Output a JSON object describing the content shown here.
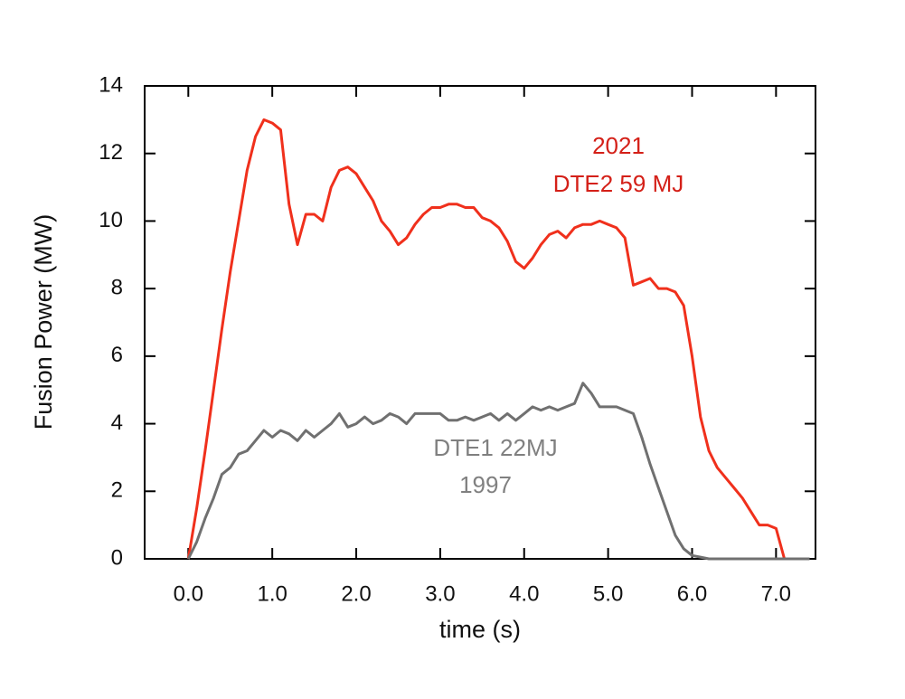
{
  "chart_data": {
    "type": "line",
    "xlabel": "time (s)",
    "ylabel": "Fusion Power (MW)",
    "x": [
      0.0,
      0.1,
      0.2,
      0.3,
      0.4,
      0.5,
      0.6,
      0.7,
      0.8,
      0.9,
      1.0,
      1.1,
      1.2,
      1.3,
      1.4,
      1.5,
      1.6,
      1.7,
      1.8,
      1.9,
      2.0,
      2.1,
      2.2,
      2.3,
      2.4,
      2.5,
      2.6,
      2.7,
      2.8,
      2.9,
      3.0,
      3.1,
      3.2,
      3.3,
      3.4,
      3.5,
      3.6,
      3.7,
      3.8,
      3.9,
      4.0,
      4.1,
      4.2,
      4.3,
      4.4,
      4.5,
      4.6,
      4.7,
      4.8,
      4.9,
      5.0,
      5.1,
      5.2,
      5.3,
      5.4,
      5.5,
      5.6,
      5.7,
      5.8,
      5.9,
      6.0,
      6.1,
      6.2,
      6.3,
      6.4,
      6.5,
      6.6,
      6.7,
      6.8,
      6.9,
      7.0,
      7.1,
      7.2,
      7.3,
      7.4
    ],
    "series": [
      {
        "color": "#f0301c",
        "values": [
          0,
          1.5,
          3.2,
          5,
          6.8,
          8.5,
          10,
          11.5,
          12.5,
          13,
          12.9,
          12.7,
          10.5,
          9.3,
          10.2,
          10.2,
          10.0,
          11,
          11.5,
          11.6,
          11.4,
          11.0,
          10.6,
          10.0,
          9.7,
          9.3,
          9.5,
          9.9,
          10.2,
          10.4,
          10.4,
          10.5,
          10.5,
          10.4,
          10.4,
          10.1,
          10.0,
          9.8,
          9.4,
          8.8,
          8.6,
          8.9,
          9.3,
          9.6,
          9.7,
          9.5,
          9.8,
          9.9,
          9.9,
          10.0,
          9.9,
          9.8,
          9.5,
          8.1,
          8.2,
          8.3,
          8.0,
          8.0,
          7.9,
          7.5,
          6.0,
          4.2,
          3.2,
          2.7,
          2.4,
          2.1,
          1.8,
          1.4,
          1.0,
          1.0,
          0.9,
          0,
          0,
          0,
          0
        ]
      },
      {
        "color": "#707070",
        "values": [
          0,
          0.5,
          1.2,
          1.8,
          2.5,
          2.7,
          3.1,
          3.2,
          3.5,
          3.8,
          3.6,
          3.8,
          3.7,
          3.5,
          3.8,
          3.6,
          3.8,
          4.0,
          4.3,
          3.9,
          4.0,
          4.2,
          4.0,
          4.1,
          4.3,
          4.2,
          4.0,
          4.3,
          4.3,
          4.3,
          4.3,
          4.1,
          4.1,
          4.2,
          4.1,
          4.2,
          4.3,
          4.1,
          4.3,
          4.1,
          4.3,
          4.5,
          4.4,
          4.5,
          4.4,
          4.5,
          4.6,
          5.2,
          4.9,
          4.5,
          4.5,
          4.5,
          4.4,
          4.3,
          3.6,
          2.8,
          2.1,
          1.4,
          0.7,
          0.3,
          0.1,
          0.05,
          0,
          0,
          0,
          0,
          0,
          0,
          0,
          0,
          0,
          0,
          0,
          0,
          0
        ]
      }
    ],
    "annotations": [
      {
        "text": "2021",
        "color": "#d42018"
      },
      {
        "text": "DTE2 59 MJ",
        "color": "#d42018"
      },
      {
        "text": "DTE1  22MJ",
        "color": "#808080"
      },
      {
        "text": "1997",
        "color": "#808080"
      }
    ],
    "xlim": [
      -0.52,
      7.47
    ],
    "ylim": [
      0,
      14
    ],
    "xticks": [
      {
        "value": 0,
        "label": "0.0"
      },
      {
        "value": 1,
        "label": "1.0"
      },
      {
        "value": 2,
        "label": "2.0"
      },
      {
        "value": 3,
        "label": "3.0"
      },
      {
        "value": 4,
        "label": "4.0"
      },
      {
        "value": 5,
        "label": "5.0"
      },
      {
        "value": 6,
        "label": "6.0"
      },
      {
        "value": 7,
        "label": "7.0"
      }
    ],
    "yticks": [
      0,
      2,
      4,
      6,
      8,
      10,
      12,
      14
    ]
  }
}
